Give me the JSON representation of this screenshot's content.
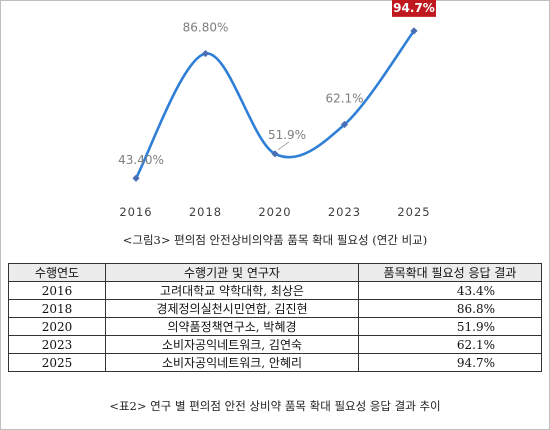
{
  "chart_data": {
    "type": "line",
    "categories": [
      "2016",
      "2018",
      "2020",
      "2023",
      "2025"
    ],
    "series": [
      {
        "values": [
          43.4,
          86.8,
          51.9,
          62.1,
          94.7
        ]
      }
    ],
    "data_labels": [
      "43.40%",
      "86.80%",
      "51.9%",
      "62.1%",
      "94.7%"
    ],
    "highlight_index": 4,
    "line_color": "#2f7fd6",
    "marker_color": "#4a6fb5",
    "highlight_color": "#c0181f",
    "xlabel": "",
    "ylabel": "",
    "ylim": [
      40,
      95
    ],
    "grid": false,
    "caption": "<그림3> 편의점 안전상비의약품 품목 확대 필요성 (연간 비교)"
  },
  "table": {
    "headers": [
      "수행연도",
      "수행기관 및 연구자",
      "품목확대 필요성 응답 결과"
    ],
    "rows": [
      [
        "2016",
        "고려대학교 약학대학, 최상은",
        "43.4%"
      ],
      [
        "2018",
        "경제정의실천시민연합, 김진현",
        "86.8%"
      ],
      [
        "2020",
        "의약품정책연구소, 박혜경",
        "51.9%"
      ],
      [
        "2023",
        "소비자공익네트워크, 김연숙",
        "62.1%"
      ],
      [
        "2025",
        "소비자공익네트워크, 안혜리",
        "94.7%"
      ]
    ],
    "caption": "<표2> 연구 별 편의점 안전 상비약 품목 확대 필요성 응답 결과 추이"
  }
}
